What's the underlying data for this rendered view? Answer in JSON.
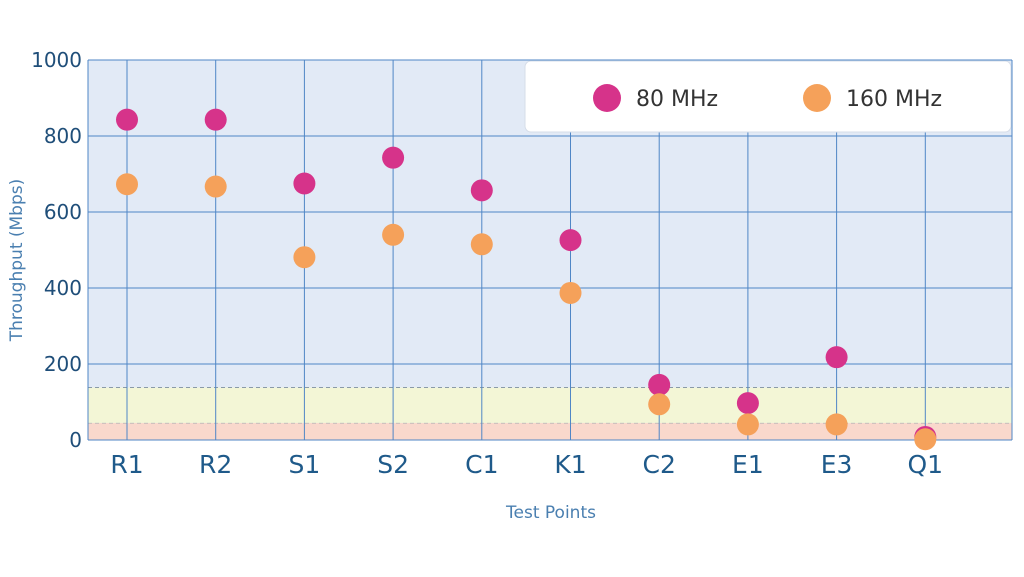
{
  "chart_data": {
    "type": "scatter",
    "title": "",
    "xlabel": "Test Points",
    "ylabel": "Throughput (Mbps)",
    "categories": [
      "R1",
      "R2",
      "S1",
      "S2",
      "C1",
      "K1",
      "C2",
      "E1",
      "E3",
      "Q1"
    ],
    "ylim": [
      0,
      1000
    ],
    "yticks": [
      0,
      200,
      400,
      600,
      800,
      1000
    ],
    "grid": true,
    "legend_position": "top-right",
    "bands": [
      {
        "from": 0,
        "to": 45,
        "color": "#f9d8cc"
      },
      {
        "from": 45,
        "to": 138,
        "color": "#f3f6d6"
      }
    ],
    "series": [
      {
        "name": "80 MHz",
        "color": "#d6338a",
        "values": [
          843,
          843,
          675,
          743,
          657,
          526,
          145,
          97,
          218,
          8
        ]
      },
      {
        "name": "160 MHz",
        "color": "#f5a15a",
        "values": [
          673,
          667,
          481,
          540,
          515,
          387,
          94,
          41,
          41,
          2
        ]
      }
    ]
  }
}
